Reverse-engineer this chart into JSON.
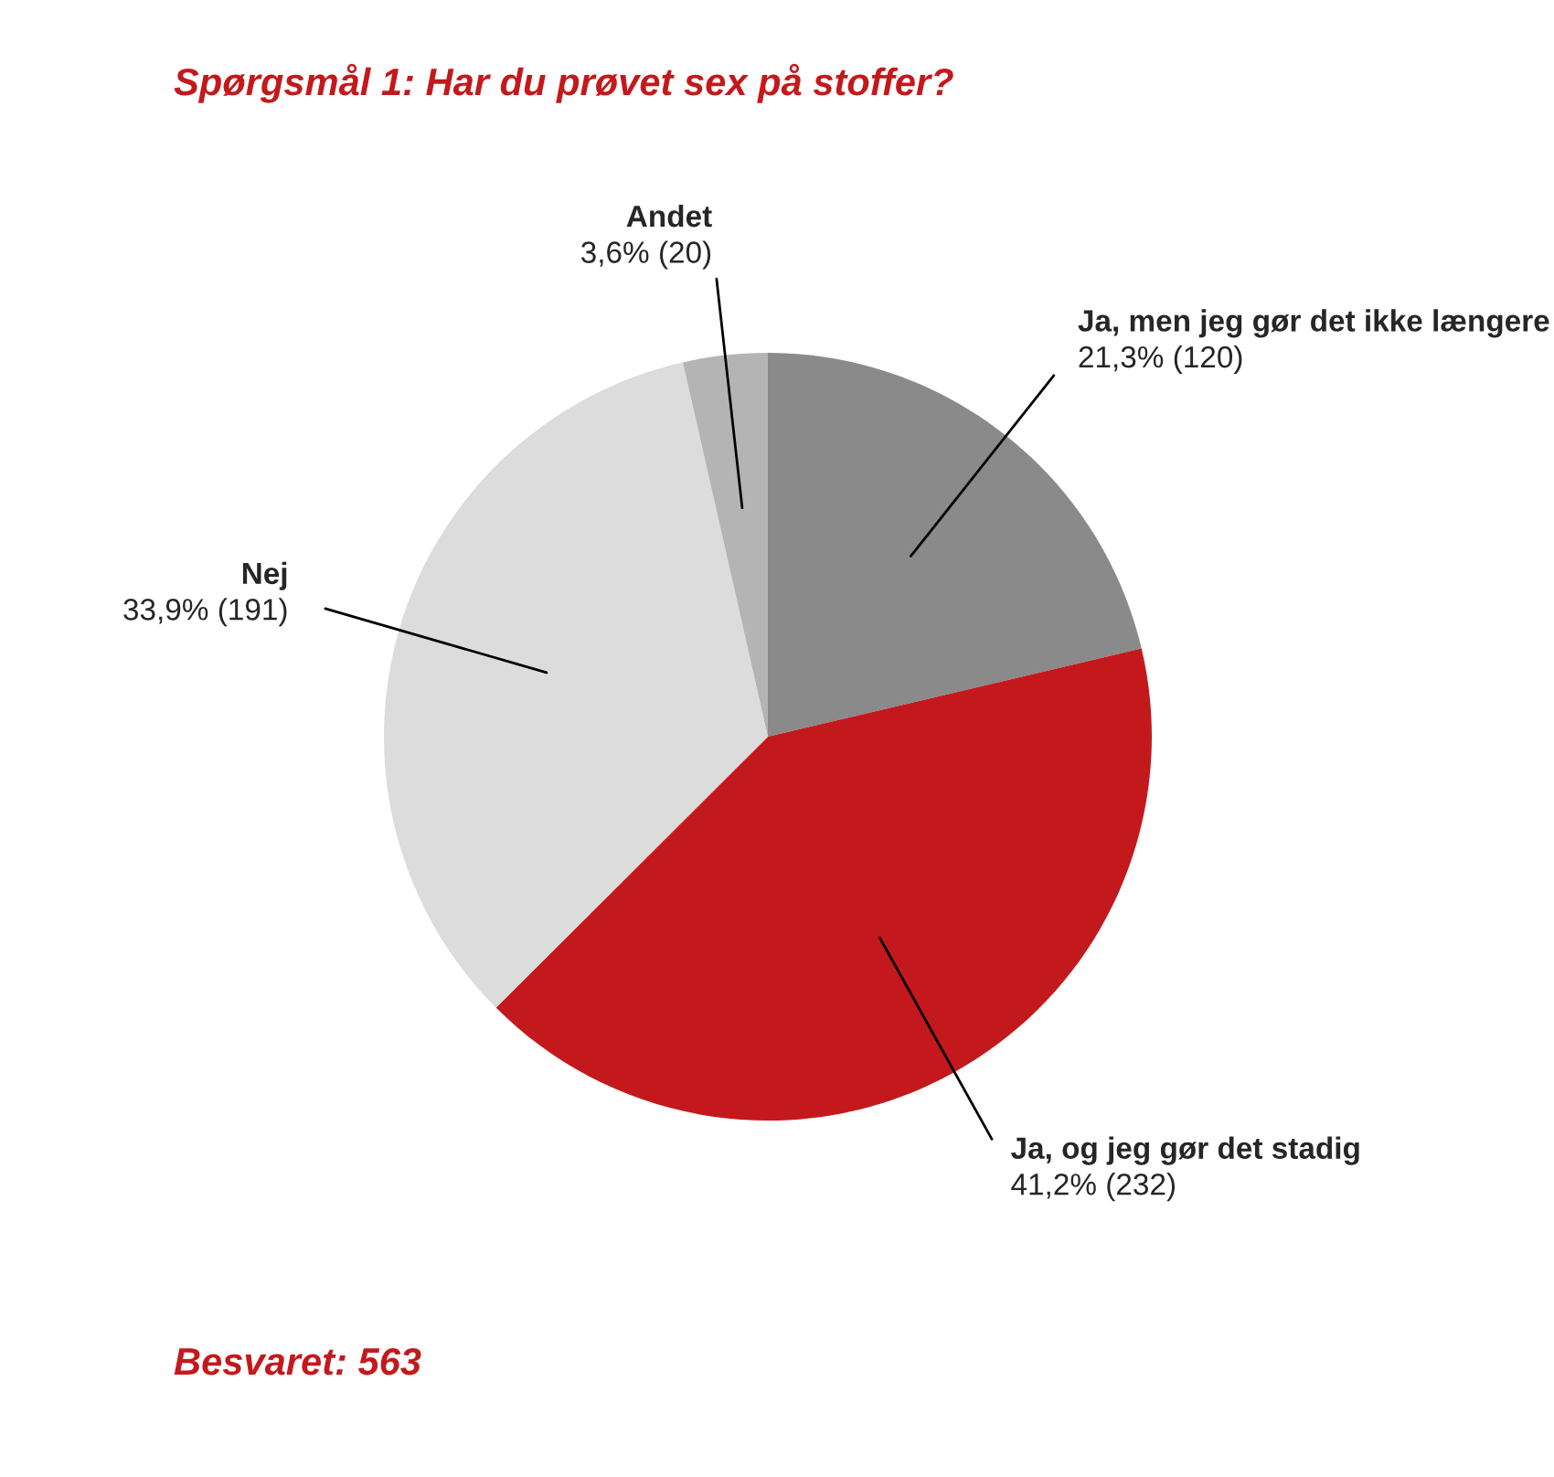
{
  "chart_data": {
    "type": "pie",
    "title": "Spørgsmål 1: Har du prøvet sex på stoffer?",
    "categories": [
      "Ja, men jeg gør det ikke længere",
      "Ja, og jeg gør det stadig",
      "Nej",
      "Andet"
    ],
    "values": [
      120,
      232,
      191,
      20
    ],
    "value_labels": [
      "21,3% (120)",
      "41,2% (232)",
      "33,9% (191)",
      "3,6% (20)"
    ],
    "colors": [
      "#8a8a8a",
      "#c4191c",
      "#dcdcdc",
      "#b4b4b4"
    ],
    "annotations": [
      "Besvaret: 563"
    ],
    "legend": false
  }
}
